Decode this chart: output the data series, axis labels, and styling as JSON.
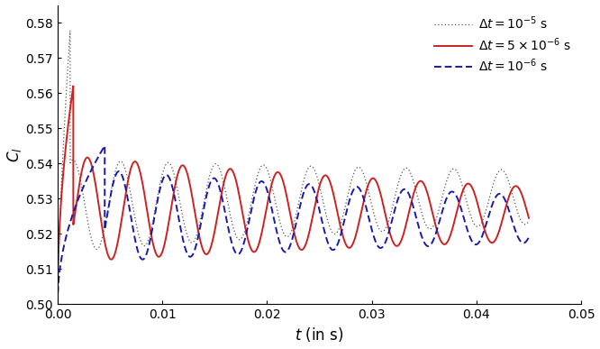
{
  "title": "",
  "xlabel": "$t$ (in s)",
  "ylabel": "$C_l$",
  "xlim": [
    0,
    0.05
  ],
  "ylim": [
    0.5,
    0.585
  ],
  "yticks": [
    0.5,
    0.51,
    0.52,
    0.53,
    0.54,
    0.55,
    0.56,
    0.57,
    0.58
  ],
  "xticks": [
    0.0,
    0.01,
    0.02,
    0.03,
    0.04,
    0.05
  ],
  "legend_labels": [
    "$\\Delta t = 10^{-5}$ s",
    "$\\Delta t = 5 \\times 10^{-6}$ s",
    "$\\Delta t = 10^{-6}$ s"
  ],
  "colors": [
    "#555555",
    "#cc2222",
    "#1a1aaa"
  ],
  "figsize": [
    6.66,
    3.87
  ],
  "dpi": 100,
  "background": "#ffffff",
  "tick_fontsize": 10,
  "label_fontsize": 12,
  "legend_fontsize": 10
}
